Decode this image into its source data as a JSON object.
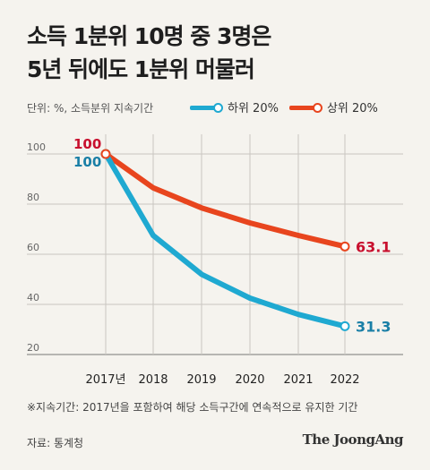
{
  "title_lines": [
    "소득 1분위 10명 중 3명은",
    "5년 뒤에도 1분위 머물러"
  ],
  "unit_label": "단위: %, 소득분위 지속기간",
  "legend": [
    {
      "label": "하위 20%",
      "color": "#1fa9d1"
    },
    {
      "label": "상위 20%",
      "color": "#e8451e"
    }
  ],
  "note": "※지속기간: 2017년을 포함하여 해당 소득구간에 연속적으로 유지한 기간",
  "source": "자료: 통계청",
  "brand": "The JoongAng",
  "chart_data": {
    "type": "line",
    "categories": [
      "2017년",
      "2018",
      "2019",
      "2020",
      "2021",
      "2022"
    ],
    "series": [
      {
        "name": "하위 20%",
        "color": "#1fa9d1",
        "label_color": "#1a7fa6",
        "values": [
          100,
          67.5,
          52,
          42.5,
          36,
          31.3
        ],
        "start_label": "100",
        "end_label": "31.3"
      },
      {
        "name": "상위 20%",
        "color": "#e8451e",
        "label_color": "#c8102e",
        "values": [
          100,
          86.5,
          78.5,
          72.5,
          67.5,
          63.1
        ],
        "start_label": "100",
        "end_label": "63.1"
      }
    ],
    "yticks": [
      20,
      40,
      60,
      80,
      100
    ],
    "ylim": [
      20,
      100
    ],
    "grid": true
  }
}
